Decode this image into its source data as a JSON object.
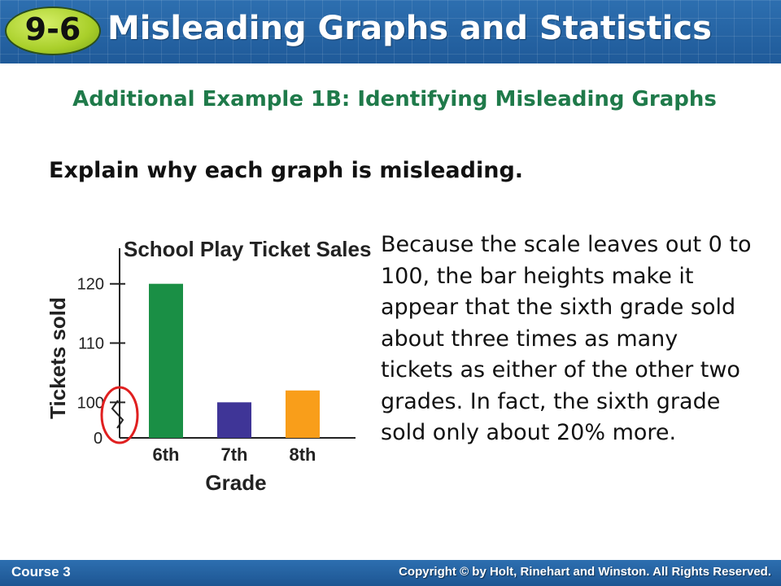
{
  "header": {
    "badge": "9-6",
    "title": "Misleading Graphs and Statistics"
  },
  "subtitle": "Additional Example 1B: Identifying Misleading Graphs",
  "prompt": "Explain why each graph is misleading.",
  "explanation": "Because the scale leaves out 0 to 100, the bar heights make it appear that the sixth grade sold about three times as many tickets as either of the other two grades. In fact, the sixth grade sold only about 20% more.",
  "chart_data": {
    "type": "bar",
    "title": "School Play Ticket Sales",
    "xlabel": "Grade",
    "ylabel": "Tickets sold",
    "categories": [
      "6th",
      "7th",
      "8th"
    ],
    "values": [
      120,
      100,
      102
    ],
    "colors": [
      "#1a8f45",
      "#3f3597",
      "#f99e1a"
    ],
    "yticks": [
      "0",
      "100",
      "110",
      "120"
    ],
    "axis_break": true,
    "break_highlight_color": "#e02020",
    "ylim": [
      94,
      126
    ],
    "grid": false
  },
  "footer": {
    "course": "Course 3",
    "copyright": "Copyright © by Holt, Rinehart and Winston. All Rights Reserved."
  }
}
